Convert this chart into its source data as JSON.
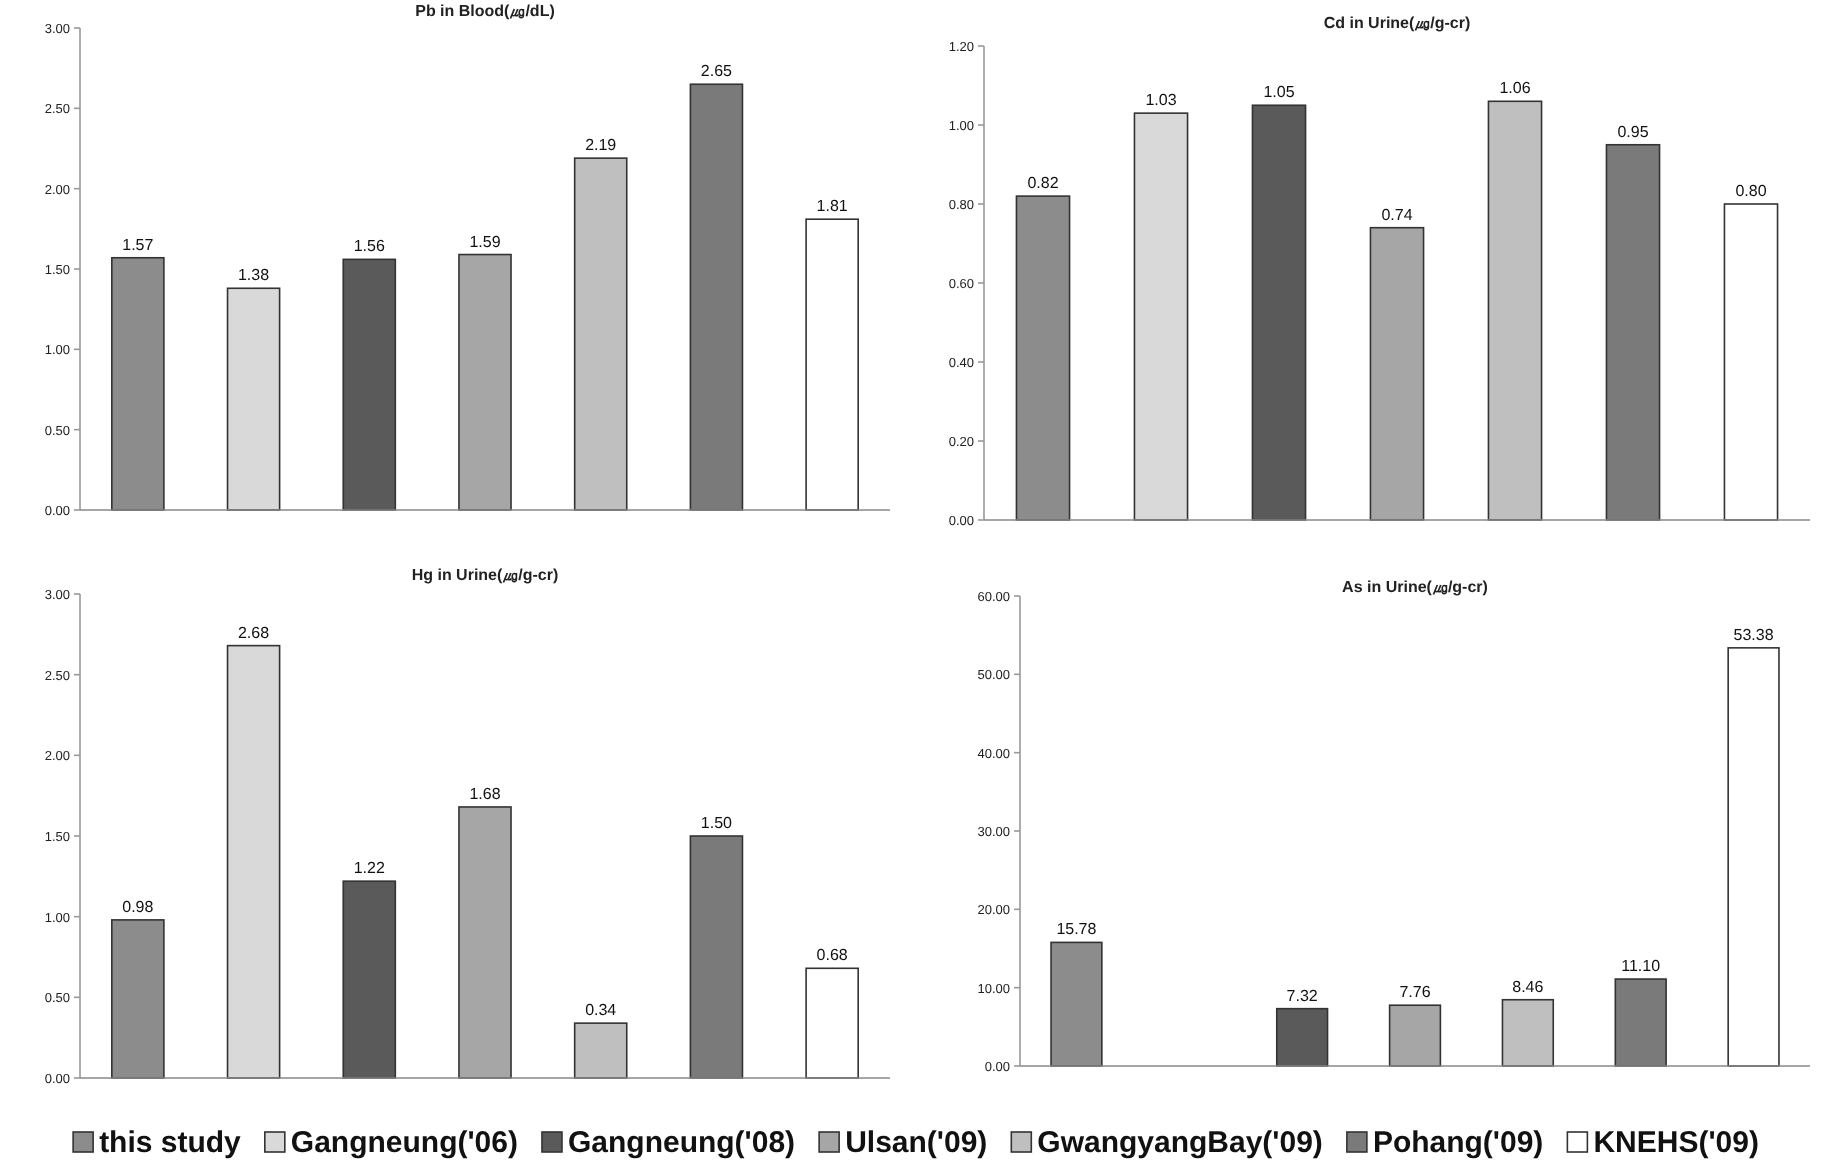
{
  "chart_data": [
    {
      "type": "bar",
      "title": "Pb in Blood(㎍/dL)",
      "categories": [
        null
      ],
      "ylim": [
        0,
        3
      ],
      "yticks": [
        {
          "value": 0,
          "label": "0.00"
        },
        {
          "value": 0.5,
          "label": "0.50"
        },
        {
          "value": 1,
          "label": "1.00"
        },
        {
          "value": 1.5,
          "label": "1.50"
        },
        {
          "value": 2,
          "label": "2.00"
        },
        {
          "value": 2.5,
          "label": "2.50"
        },
        {
          "value": 3,
          "label": "3.00"
        }
      ],
      "series": [
        {
          "color": "#8c8c8c",
          "values": [
            1.57
          ],
          "value_labels": [
            "1.57"
          ]
        },
        {
          "color": "#d9d9d9",
          "values": [
            1.38
          ],
          "value_labels": [
            "1.38"
          ]
        },
        {
          "color": "#5a5a5a",
          "values": [
            1.56
          ],
          "value_labels": [
            "1.56"
          ]
        },
        {
          "color": "#a6a6a6",
          "values": [
            1.59
          ],
          "value_labels": [
            "1.59"
          ]
        },
        {
          "color": "#bfbfbf",
          "values": [
            2.19
          ],
          "value_labels": [
            "2.19"
          ]
        },
        {
          "color": "#7a7a7a",
          "values": [
            2.65
          ],
          "value_labels": [
            "2.65"
          ]
        },
        {
          "color": "#ffffff",
          "values": [
            1.81
          ],
          "value_labels": [
            "1.81"
          ]
        }
      ]
    },
    {
      "type": "bar",
      "title": "Cd in Urine(㎍/g-cr)",
      "categories": [
        null
      ],
      "ylim": [
        0,
        1.2
      ],
      "yticks": [
        {
          "value": 0,
          "label": "0.00"
        },
        {
          "value": 0.2,
          "label": "0.20"
        },
        {
          "value": 0.4,
          "label": "0.40"
        },
        {
          "value": 0.6,
          "label": "0.60"
        },
        {
          "value": 0.8,
          "label": "0.80"
        },
        {
          "value": 1,
          "label": "1.00"
        },
        {
          "value": 1.2,
          "label": "1.20"
        }
      ],
      "series": [
        {
          "color": "#8c8c8c",
          "values": [
            0.82
          ],
          "value_labels": [
            "0.82"
          ]
        },
        {
          "color": "#d9d9d9",
          "values": [
            1.03
          ],
          "value_labels": [
            "1.03"
          ]
        },
        {
          "color": "#5a5a5a",
          "values": [
            1.05
          ],
          "value_labels": [
            "1.05"
          ]
        },
        {
          "color": "#a6a6a6",
          "values": [
            0.74
          ],
          "value_labels": [
            "0.74"
          ]
        },
        {
          "color": "#bfbfbf",
          "values": [
            1.06
          ],
          "value_labels": [
            "1.06"
          ]
        },
        {
          "color": "#7a7a7a",
          "values": [
            0.95
          ],
          "value_labels": [
            "0.95"
          ]
        },
        {
          "color": "#ffffff",
          "values": [
            0.8
          ],
          "value_labels": [
            "0.80"
          ]
        }
      ]
    },
    {
      "type": "bar",
      "title": "Hg in Urine(㎍/g-cr)",
      "categories": [
        null
      ],
      "ylim": [
        0,
        3
      ],
      "yticks": [
        {
          "value": 0,
          "label": "0.00"
        },
        {
          "value": 0.5,
          "label": "0.50"
        },
        {
          "value": 1,
          "label": "1.00"
        },
        {
          "value": 1.5,
          "label": "1.50"
        },
        {
          "value": 2,
          "label": "2.00"
        },
        {
          "value": 2.5,
          "label": "2.50"
        },
        {
          "value": 3,
          "label": "3.00"
        }
      ],
      "series": [
        {
          "color": "#8c8c8c",
          "values": [
            0.98
          ],
          "value_labels": [
            "0.98"
          ]
        },
        {
          "color": "#d9d9d9",
          "values": [
            2.68
          ],
          "value_labels": [
            "2.68"
          ]
        },
        {
          "color": "#5a5a5a",
          "values": [
            1.22
          ],
          "value_labels": [
            "1.22"
          ]
        },
        {
          "color": "#a6a6a6",
          "values": [
            1.68
          ],
          "value_labels": [
            "1.68"
          ]
        },
        {
          "color": "#bfbfbf",
          "values": [
            0.34
          ],
          "value_labels": [
            "0.34"
          ]
        },
        {
          "color": "#7a7a7a",
          "values": [
            1.5
          ],
          "value_labels": [
            "1.50"
          ]
        },
        {
          "color": "#ffffff",
          "values": [
            0.68
          ],
          "value_labels": [
            "0.68"
          ]
        }
      ]
    },
    {
      "type": "bar",
      "title": "As in Urine(㎍/g-cr)",
      "categories": [
        null
      ],
      "ylim": [
        0,
        60
      ],
      "yticks": [
        {
          "value": 0,
          "label": "0.00"
        },
        {
          "value": 10,
          "label": "10.00"
        },
        {
          "value": 20,
          "label": "20.00"
        },
        {
          "value": 30,
          "label": "30.00"
        },
        {
          "value": 40,
          "label": "40.00"
        },
        {
          "value": 50,
          "label": "50.00"
        },
        {
          "value": 60,
          "label": "60.00"
        }
      ],
      "legend": "bottom",
      "series": [
        {
          "name": "this study",
          "color": "#8c8c8c",
          "values": [
            15.78
          ],
          "value_labels": [
            "15.78"
          ]
        },
        {
          "name": "Gangneung('06)",
          "color": "#d9d9d9",
          "values": [
            null
          ],
          "value_labels": [
            null
          ]
        },
        {
          "name": "Gangneung('08)",
          "color": "#5a5a5a",
          "values": [
            7.32
          ],
          "value_labels": [
            "7.32"
          ]
        },
        {
          "name": "Ulsan('09)",
          "color": "#a6a6a6",
          "values": [
            7.76
          ],
          "value_labels": [
            "7.76"
          ]
        },
        {
          "name": "GwangyangBay('09)",
          "color": "#bfbfbf",
          "values": [
            8.46
          ],
          "value_labels": [
            "8.46"
          ]
        },
        {
          "name": "Pohang('09)",
          "color": "#7a7a7a",
          "values": [
            11.1
          ],
          "value_labels": [
            "11.10"
          ]
        },
        {
          "name": "KNEHS('09)",
          "color": "#ffffff",
          "values": [
            53.38
          ],
          "value_labels": [
            "53.38"
          ]
        }
      ]
    }
  ]
}
